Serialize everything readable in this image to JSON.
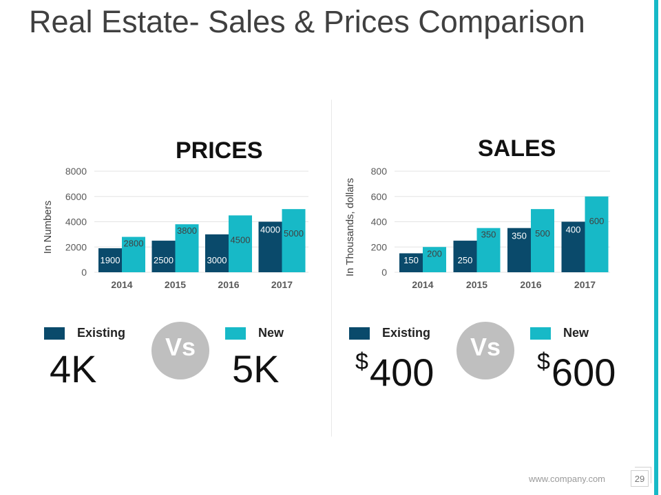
{
  "title": "Real Estate- Sales & Prices Comparison",
  "colors": {
    "existing": "#0a4a6b",
    "new": "#17b9c7",
    "accent": "#17b9c7",
    "vs": "#bfbfbf"
  },
  "chart_data": [
    {
      "type": "bar",
      "title": "PRICES",
      "ylabel": "In Numbers",
      "xlabel": "",
      "categories": [
        "2014",
        "2015",
        "2016",
        "2017"
      ],
      "series": [
        {
          "name": "Existing",
          "values": [
            1900,
            2500,
            3000,
            4000
          ]
        },
        {
          "name": "New",
          "values": [
            2800,
            3800,
            4500,
            5000
          ]
        }
      ],
      "ylim": [
        0,
        8000
      ],
      "yticks": [
        "0",
        "2000",
        "4000",
        "6000",
        "8000"
      ],
      "grid": true
    },
    {
      "type": "bar",
      "title": "SALES",
      "ylabel": "In Thousands, dollars",
      "xlabel": "",
      "categories": [
        "2014",
        "2015",
        "2016",
        "2017"
      ],
      "series": [
        {
          "name": "Existing",
          "values": [
            150,
            250,
            350,
            400
          ]
        },
        {
          "name": "New",
          "values": [
            200,
            350,
            500,
            600
          ]
        }
      ],
      "ylim": [
        0,
        800
      ],
      "yticks": [
        "0",
        "200",
        "400",
        "600",
        "800"
      ],
      "grid": true
    }
  ],
  "prices_panel": {
    "legend_existing": "Existing",
    "legend_new": "New",
    "vs": "Vs",
    "existing_value": "4K",
    "new_value": "5K"
  },
  "sales_panel": {
    "legend_existing": "Existing",
    "legend_new": "New",
    "vs": "Vs",
    "currency": "$",
    "existing_value": "400",
    "new_value": "600"
  },
  "footer": {
    "url": "www.company.com",
    "page": "29"
  }
}
